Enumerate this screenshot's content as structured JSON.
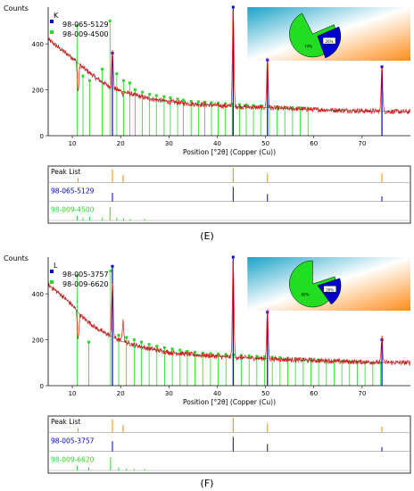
{
  "chart_data": [
    {
      "type": "line",
      "panel_letter": "K",
      "ylabel": "Counts",
      "xlabel": "Position [°2θ] (Copper (Cu))",
      "xlim": [
        5,
        80
      ],
      "ylim": [
        0,
        560
      ],
      "x_ticks": [
        10,
        20,
        30,
        40,
        50,
        60,
        70
      ],
      "y_ticks": [
        0,
        200,
        400
      ],
      "legend": [
        "98-065-5129",
        "98-009-4500"
      ],
      "background_curve": {
        "x": [
          5,
          8,
          10,
          12,
          15,
          18,
          20,
          25,
          30,
          35,
          40,
          45,
          50,
          55,
          60,
          65,
          70,
          75,
          80
        ],
        "y": [
          420,
          370,
          340,
          300,
          250,
          210,
          195,
          165,
          148,
          138,
          132,
          126,
          122,
          118,
          114,
          111,
          108,
          106,
          104
        ]
      },
      "peaks": [
        {
          "x": 11.2,
          "y": 190
        },
        {
          "x": 18.3,
          "y": 370
        },
        {
          "x": 20.5,
          "y": 180
        },
        {
          "x": 43.3,
          "y": 560
        },
        {
          "x": 50.4,
          "y": 340
        },
        {
          "x": 74.1,
          "y": 310
        }
      ],
      "stick_pattern_1": {
        "name": "98-065-5129",
        "color": "#0000cc",
        "x": [
          18.3,
          43.3,
          50.4,
          74.1
        ],
        "y": [
          360,
          560,
          330,
          300
        ]
      },
      "stick_pattern_2": {
        "name": "98-009-4500",
        "color": "#22dd22",
        "x": [
          11.0,
          12.2,
          13.6,
          16.2,
          17.8,
          19.2,
          20.6,
          21.9,
          23.0,
          24.5,
          26.0,
          27.4,
          29.0,
          30.3,
          31.8,
          33.0,
          34.6,
          36.1,
          37.4,
          38.8,
          40.2,
          41.7,
          43.1,
          44.6,
          46.0,
          47.5,
          49.0,
          50.8,
          52.4,
          54.0,
          55.6,
          57.2,
          58.8
        ],
        "y": [
          480,
          260,
          240,
          290,
          500,
          270,
          240,
          230,
          200,
          190,
          180,
          175,
          170,
          165,
          160,
          155,
          150,
          148,
          146,
          144,
          142,
          140,
          138,
          136,
          134,
          132,
          130,
          128,
          126,
          124,
          122,
          121,
          120
        ]
      },
      "pie_chart": {
        "slices": [
          {
            "label": "74%",
            "value": 74,
            "color": "#22dd22"
          },
          {
            "label": "26%",
            "value": 26,
            "color": "#0000cc"
          }
        ]
      },
      "peak_list": {
        "rows": [
          "Peak List",
          "98-065-5129",
          "98-009-4500"
        ],
        "row_colors": [
          "#000000",
          "#0000cc",
          "#22dd22"
        ],
        "peak_list_x": [
          18.3,
          20.5,
          43.3,
          50.4,
          74.1,
          11.2
        ],
        "peak_list_h": [
          0.9,
          0.5,
          1.0,
          0.6,
          0.6,
          0.3
        ],
        "p1_x": [
          18.3,
          43.3,
          50.4,
          74.1
        ],
        "p1_h": [
          0.6,
          1.0,
          0.5,
          0.35
        ],
        "p2_x": [
          11.0,
          12.2,
          13.6,
          16.2,
          17.8,
          19.2,
          20.6,
          22.0,
          25.0
        ],
        "p2_h": [
          0.3,
          0.2,
          0.25,
          0.2,
          0.9,
          0.2,
          0.15,
          0.1,
          0.1
        ]
      },
      "caption": "(E)"
    },
    {
      "type": "line",
      "panel_letter": "L",
      "ylabel": "Counts",
      "xlabel": "Position [°2θ] (Copper (Cu))",
      "xlim": [
        5,
        80
      ],
      "ylim": [
        0,
        560
      ],
      "x_ticks": [
        10,
        20,
        30,
        40,
        50,
        60,
        70
      ],
      "y_ticks": [
        0,
        200,
        400
      ],
      "legend": [
        "98-005-3757",
        "98-009-6620"
      ],
      "background_curve": {
        "x": [
          5,
          8,
          10,
          12,
          15,
          18,
          20,
          25,
          30,
          35,
          40,
          45,
          50,
          55,
          60,
          65,
          70,
          75,
          80
        ],
        "y": [
          440,
          390,
          350,
          300,
          250,
          215,
          195,
          165,
          145,
          135,
          128,
          122,
          118,
          113,
          110,
          106,
          103,
          101,
          100
        ]
      },
      "peaks": [
        {
          "x": 11.2,
          "y": 200
        },
        {
          "x": 18.3,
          "y": 450
        },
        {
          "x": 20.5,
          "y": 280
        },
        {
          "x": 43.3,
          "y": 560
        },
        {
          "x": 50.4,
          "y": 330
        },
        {
          "x": 74.1,
          "y": 210
        }
      ],
      "stick_pattern_1": {
        "name": "98-005-3757",
        "color": "#0000cc",
        "x": [
          18.3,
          43.3,
          50.4,
          74.1
        ],
        "y": [
          520,
          560,
          320,
          200
        ]
      },
      "stick_pattern_2": {
        "name": "98-009-6620",
        "color": "#22dd22",
        "x": [
          11.0,
          13.4,
          17.9,
          19.6,
          21.2,
          22.8,
          24.3,
          25.9,
          27.5,
          29.1,
          30.7,
          32.3,
          33.8,
          35.4,
          37.0,
          38.6,
          40.2,
          41.8,
          43.4,
          45.0,
          46.6,
          48.2,
          49.8,
          51.4,
          53.0,
          54.6,
          56.2,
          57.8,
          59.4,
          61.0,
          62.6,
          64.2,
          65.8,
          67.4,
          69.0,
          70.6,
          72.2,
          73.8
        ],
        "y": [
          480,
          190,
          500,
          220,
          210,
          200,
          190,
          180,
          172,
          165,
          160,
          155,
          150,
          145,
          142,
          140,
          138,
          136,
          134,
          132,
          130,
          128,
          126,
          124,
          122,
          120,
          118,
          116,
          114,
          112,
          110,
          108,
          106,
          104,
          103,
          102,
          101,
          100
        ]
      },
      "pie_chart": {
        "slices": [
          {
            "label": "80%",
            "value": 80,
            "color": "#22dd22"
          },
          {
            "label": "20%",
            "value": 20,
            "color": "#0000cc"
          }
        ]
      },
      "peak_list": {
        "rows": [
          "Peak List",
          "98-005-3757",
          "98-009-6620"
        ],
        "row_colors": [
          "#000000",
          "#0000cc",
          "#22dd22"
        ],
        "peak_list_x": [
          18.3,
          20.5,
          43.3,
          50.4,
          74.1,
          11.2
        ],
        "peak_list_h": [
          0.9,
          0.5,
          1.0,
          0.6,
          0.4,
          0.3
        ],
        "p1_x": [
          18.3,
          43.3,
          50.4,
          74.1
        ],
        "p1_h": [
          0.7,
          1.0,
          0.5,
          0.3
        ],
        "p2_x": [
          11.0,
          13.4,
          17.9,
          19.6,
          21.2,
          22.8,
          25.0
        ],
        "p2_h": [
          0.3,
          0.2,
          0.9,
          0.2,
          0.15,
          0.1,
          0.1
        ]
      },
      "caption": "(F)"
    }
  ],
  "colors": {
    "data_line": "#ee1111",
    "pattern_blue": "#0000cc",
    "pattern_green": "#22dd22",
    "peaklist_orange": "#ff8800"
  }
}
